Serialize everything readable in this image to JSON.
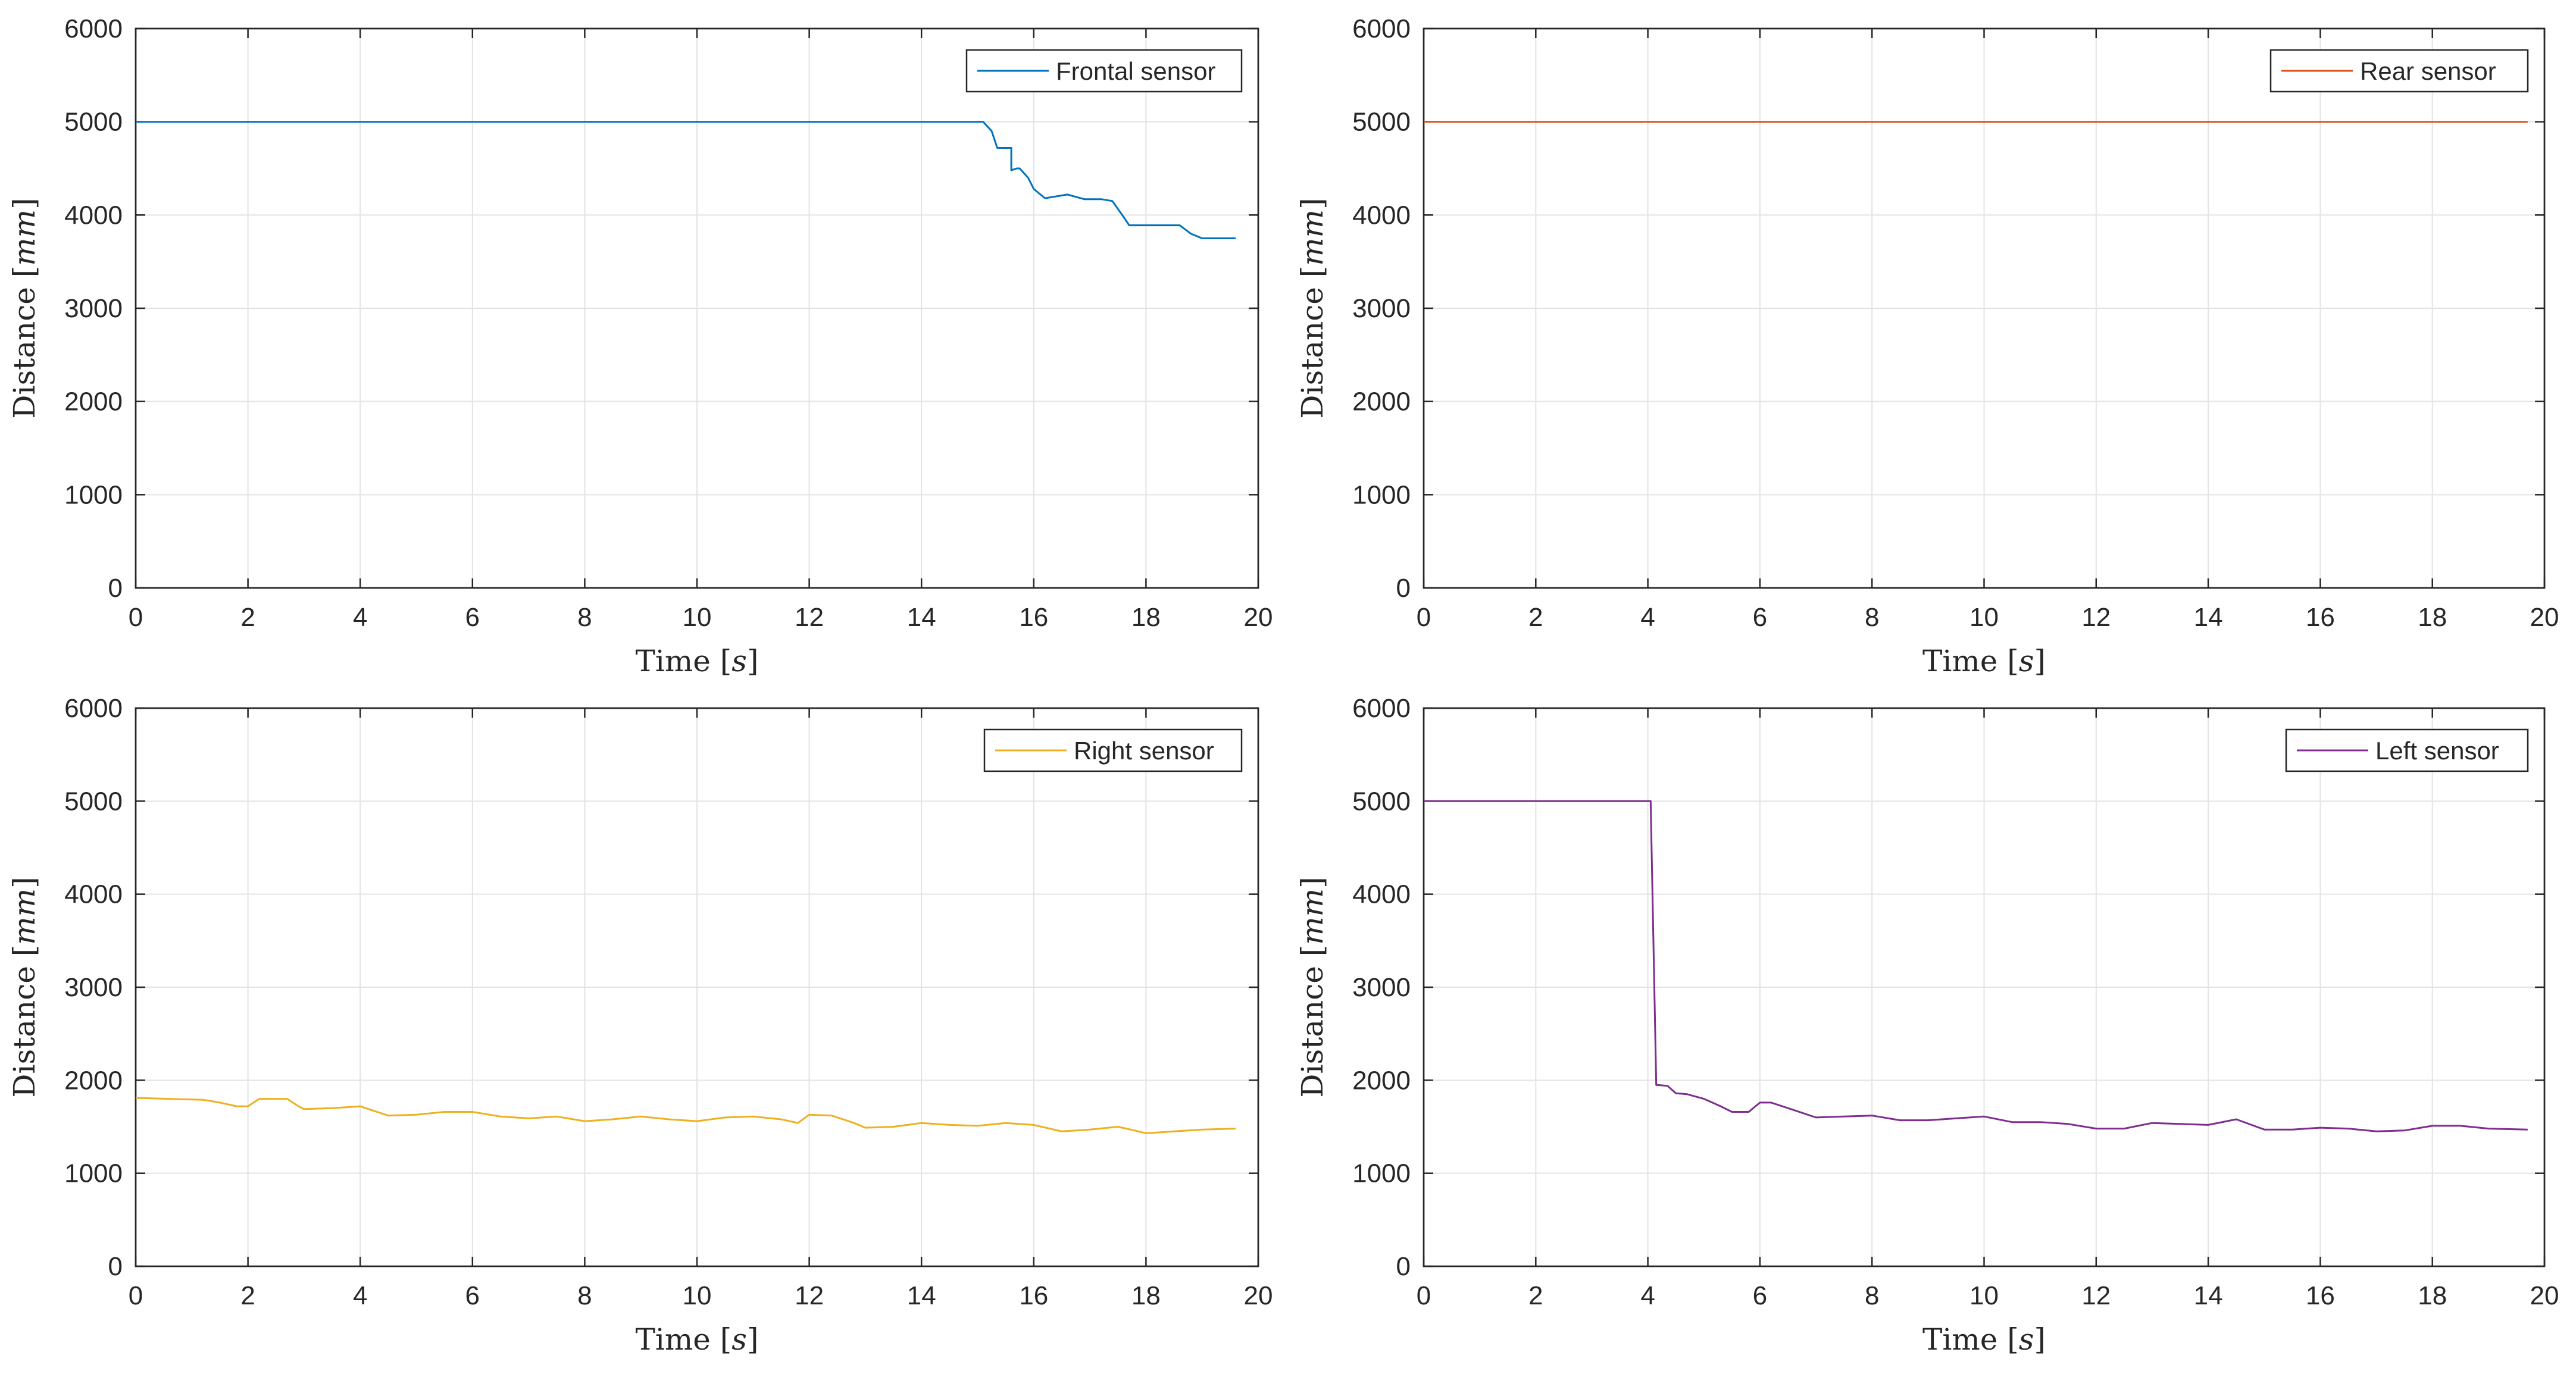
{
  "chart_data": [
    {
      "type": "line",
      "title": "",
      "xlabel": "Time",
      "xlabel_unit": "s",
      "ylabel": "Distance",
      "ylabel_unit": "mm",
      "xlim": [
        0,
        20
      ],
      "ylim": [
        0,
        6000
      ],
      "xticks": [
        0,
        2,
        4,
        6,
        8,
        10,
        12,
        14,
        16,
        18,
        20
      ],
      "yticks": [
        0,
        1000,
        2000,
        3000,
        4000,
        5000,
        6000
      ],
      "grid": true,
      "legend_position": "top-right",
      "series": [
        {
          "name": "Frontal sensor",
          "color": "#0072BD",
          "x": [
            0,
            15.1,
            15.25,
            15.35,
            15.6,
            15.6,
            15.7,
            15.75,
            15.9,
            16.0,
            16.2,
            16.6,
            16.9,
            17.2,
            17.4,
            17.6,
            17.7,
            18.6,
            18.8,
            19.0,
            19.6
          ],
          "y": [
            5000,
            5000,
            4900,
            4720,
            4720,
            4480,
            4500,
            4500,
            4400,
            4280,
            4180,
            4220,
            4170,
            4170,
            4150,
            3980,
            3890,
            3890,
            3800,
            3750,
            3750
          ]
        }
      ]
    },
    {
      "type": "line",
      "title": "",
      "xlabel": "Time",
      "xlabel_unit": "s",
      "ylabel": "Distance",
      "ylabel_unit": "mm",
      "xlim": [
        0,
        20
      ],
      "ylim": [
        0,
        6000
      ],
      "xticks": [
        0,
        2,
        4,
        6,
        8,
        10,
        12,
        14,
        16,
        18,
        20
      ],
      "yticks": [
        0,
        1000,
        2000,
        3000,
        4000,
        5000,
        6000
      ],
      "grid": true,
      "legend_position": "top-right",
      "series": [
        {
          "name": "Rear sensor",
          "color": "#D95319",
          "x": [
            0,
            19.7
          ],
          "y": [
            5000,
            5000
          ]
        }
      ]
    },
    {
      "type": "line",
      "title": "",
      "xlabel": "Time",
      "xlabel_unit": "s",
      "ylabel": "Distance",
      "ylabel_unit": "mm",
      "xlim": [
        0,
        20
      ],
      "ylim": [
        0,
        6000
      ],
      "xticks": [
        0,
        2,
        4,
        6,
        8,
        10,
        12,
        14,
        16,
        18,
        20
      ],
      "yticks": [
        0,
        1000,
        2000,
        3000,
        4000,
        5000,
        6000
      ],
      "grid": true,
      "legend_position": "top-right",
      "series": [
        {
          "name": "Right sensor",
          "color": "#EDB120",
          "x": [
            0,
            1.2,
            1.5,
            1.8,
            2.0,
            2.2,
            2.7,
            2.9,
            3.0,
            3.5,
            4.0,
            4.2,
            4.5,
            5.0,
            5.5,
            6.0,
            6.5,
            7.0,
            7.5,
            8.0,
            8.5,
            9.0,
            9.5,
            10.0,
            10.5,
            11.0,
            11.5,
            11.8,
            12.0,
            12.4,
            12.8,
            13.0,
            13.5,
            14.0,
            14.5,
            15.0,
            15.5,
            16.0,
            16.5,
            17.0,
            17.5,
            17.8,
            18.0,
            18.5,
            19.0,
            19.6
          ],
          "y": [
            1810,
            1790,
            1760,
            1720,
            1720,
            1800,
            1800,
            1720,
            1690,
            1700,
            1720,
            1680,
            1620,
            1630,
            1660,
            1660,
            1610,
            1590,
            1610,
            1560,
            1580,
            1610,
            1580,
            1560,
            1600,
            1610,
            1580,
            1540,
            1630,
            1620,
            1540,
            1490,
            1500,
            1540,
            1520,
            1510,
            1540,
            1520,
            1450,
            1470,
            1500,
            1460,
            1430,
            1450,
            1470,
            1480
          ]
        }
      ]
    },
    {
      "type": "line",
      "title": "",
      "xlabel": "Time",
      "xlabel_unit": "s",
      "ylabel": "Distance",
      "ylabel_unit": "mm",
      "xlim": [
        0,
        20
      ],
      "ylim": [
        0,
        6000
      ],
      "xticks": [
        0,
        2,
        4,
        6,
        8,
        10,
        12,
        14,
        16,
        18,
        20
      ],
      "yticks": [
        0,
        1000,
        2000,
        3000,
        4000,
        5000,
        6000
      ],
      "grid": true,
      "legend_position": "top-right",
      "series": [
        {
          "name": "Left sensor",
          "color": "#7E2F8E",
          "x": [
            0,
            4.05,
            4.15,
            4.35,
            4.5,
            4.7,
            5.0,
            5.3,
            5.5,
            5.8,
            6.0,
            6.2,
            6.5,
            7.0,
            7.5,
            8.0,
            8.5,
            9.0,
            9.5,
            10.0,
            10.5,
            11.0,
            11.5,
            12.0,
            12.5,
            13.0,
            13.5,
            14.0,
            14.5,
            15.0,
            15.5,
            16.0,
            16.5,
            17.0,
            17.5,
            18.0,
            18.5,
            19.0,
            19.7
          ],
          "y": [
            5000,
            5000,
            1950,
            1940,
            1860,
            1850,
            1800,
            1720,
            1660,
            1660,
            1760,
            1760,
            1700,
            1600,
            1610,
            1620,
            1570,
            1570,
            1590,
            1610,
            1550,
            1550,
            1530,
            1480,
            1480,
            1540,
            1530,
            1520,
            1580,
            1470,
            1470,
            1490,
            1480,
            1450,
            1460,
            1510,
            1510,
            1480,
            1470
          ]
        }
      ]
    }
  ]
}
